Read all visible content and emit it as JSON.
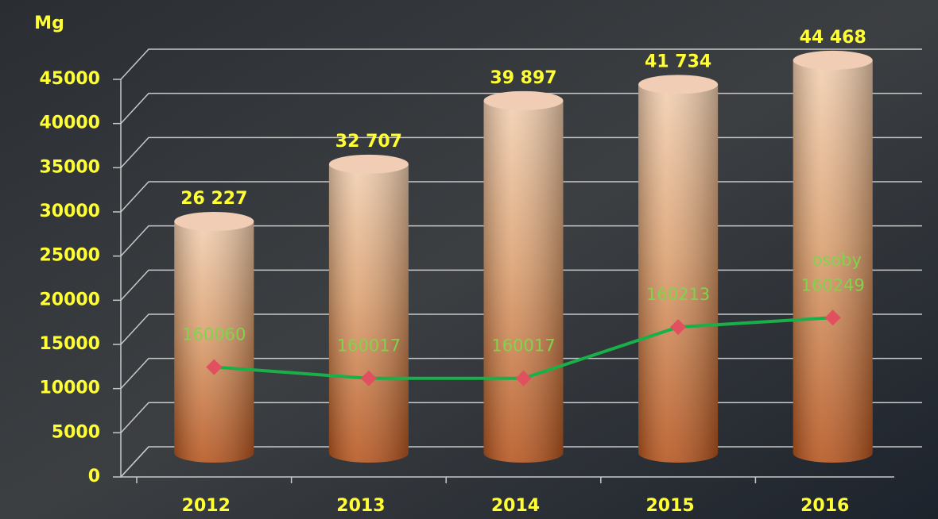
{
  "chart_data": {
    "type": "bar",
    "y_label": "Mg",
    "categories": [
      "2012",
      "2013",
      "2014",
      "2015",
      "2016"
    ],
    "values": [
      26227,
      32707,
      39897,
      41734,
      44468
    ],
    "value_labels": [
      "26 227",
      "32 707",
      "39 897",
      "41 734",
      "44 468"
    ],
    "color": "#c8783c",
    "ylim": [
      0,
      45000
    ],
    "yticks": [
      0,
      5000,
      10000,
      15000,
      20000,
      25000,
      30000,
      35000,
      40000,
      45000
    ],
    "grid": true,
    "y2lim": [
      159640,
      161160
    ],
    "series": [
      {
        "name": "osoby",
        "type": "line",
        "axis": "y2",
        "color": "#19b04a",
        "marker_color": "#e0505e",
        "values": [
          160060,
          160017,
          160017,
          160213,
          160249
        ]
      }
    ]
  }
}
